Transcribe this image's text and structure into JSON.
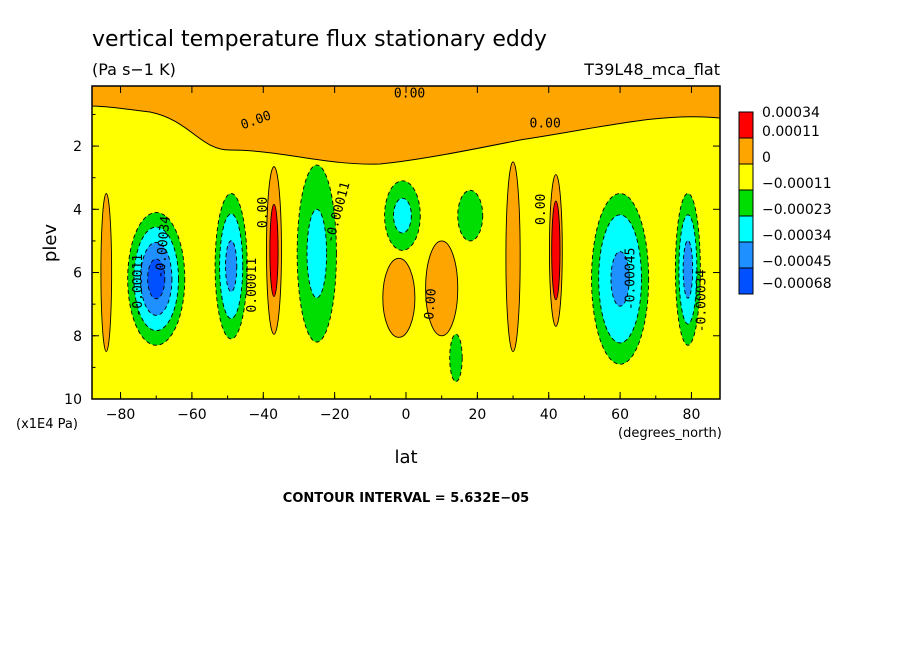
{
  "chart_data": {
    "type": "heatmap",
    "title": "vertical temperature flux stationary eddy",
    "units": "(Pa s−1 K)",
    "dataset": "T39L48_mca_flat",
    "xlabel": "lat",
    "x_units": "(degrees_north)",
    "ylabel": "plev",
    "y_units": "(x1E4 Pa)",
    "xlim": [
      -88,
      88
    ],
    "ylim": [
      10,
      0.1
    ],
    "x_ticks": [
      -80,
      -60,
      -40,
      -20,
      0,
      20,
      40,
      60,
      80
    ],
    "x_tick_labels": [
      "−80",
      "−60",
      "−40",
      "−20",
      "0",
      "20",
      "40",
      "60",
      "80"
    ],
    "y_ticks": [
      2,
      4,
      6,
      8,
      10
    ],
    "y_tick_labels": [
      "2",
      "4",
      "6",
      "8",
      "10"
    ],
    "contour_interval_text": "CONTOUR INTERVAL = 5.632E−05",
    "colorbar": {
      "levels": [
        "0.00034",
        "0.00011",
        "0",
        "−0.00011",
        "−0.00023",
        "−0.00034",
        "−0.00045",
        "−0.00068"
      ],
      "colors": [
        "#ff0000",
        "#ffa500",
        "#ffff00",
        "#00dd00",
        "#00ffff",
        "#1e90ff",
        "#0050ff"
      ]
    },
    "background_color": "#ffff00",
    "regions": [
      {
        "lat": -70,
        "plev": 6.2,
        "w": 16,
        "h": 4.2,
        "bands": [
          [
            "#00dd00",
            1.0
          ],
          [
            "#00ffff",
            0.78
          ],
          [
            "#1e90ff",
            0.55
          ],
          [
            "#0050ff",
            0.3
          ]
        ]
      },
      {
        "lat": -49,
        "plev": 5.8,
        "w": 9,
        "h": 4.6,
        "bands": [
          [
            "#00dd00",
            1.0
          ],
          [
            "#00ffff",
            0.72
          ],
          [
            "#1e90ff",
            0.35
          ]
        ]
      },
      {
        "lat": -37,
        "plev": 5.3,
        "w": 4.2,
        "h": 5.3,
        "bands": [
          [
            "#ffa500",
            1.0
          ],
          [
            "#ff0000",
            0.55
          ]
        ]
      },
      {
        "lat": -25,
        "plev": 5.4,
        "w": 11,
        "h": 5.6,
        "bands": [
          [
            "#00dd00",
            1.0
          ],
          [
            "#00ffff",
            0.5
          ]
        ]
      },
      {
        "lat": -1,
        "plev": 4.2,
        "w": 10,
        "h": 2.2,
        "bands": [
          [
            "#00dd00",
            1.0
          ],
          [
            "#00ffff",
            0.5
          ]
        ]
      },
      {
        "lat": 18,
        "plev": 4.2,
        "w": 7,
        "h": 1.6,
        "bands": [
          [
            "#00dd00",
            1.0
          ]
        ]
      },
      {
        "lat": 14,
        "plev": 8.7,
        "w": 3.5,
        "h": 1.5,
        "bands": [
          [
            "#00dd00",
            1.0
          ]
        ]
      },
      {
        "lat": 42,
        "plev": 5.3,
        "w": 3.6,
        "h": 4.8,
        "bands": [
          [
            "#ffa500",
            1.0
          ],
          [
            "#ff0000",
            0.65
          ]
        ]
      },
      {
        "lat": 60,
        "plev": 6.2,
        "w": 16,
        "h": 5.4,
        "bands": [
          [
            "#00dd00",
            1.0
          ],
          [
            "#00ffff",
            0.75
          ],
          [
            "#1e90ff",
            0.32
          ]
        ]
      },
      {
        "lat": 79,
        "plev": 5.9,
        "w": 7,
        "h": 4.8,
        "bands": [
          [
            "#00dd00",
            1.0
          ],
          [
            "#00ffff",
            0.72
          ],
          [
            "#1e90ff",
            0.38
          ]
        ]
      },
      {
        "lat": 10,
        "plev": 6.5,
        "w": 9,
        "h": 3,
        "bands": [
          [
            "#ffa500",
            1.0
          ]
        ]
      },
      {
        "lat": -2,
        "plev": 6.8,
        "w": 9,
        "h": 2.5,
        "bands": [
          [
            "#ffa500",
            1.0
          ]
        ]
      },
      {
        "lat": 30,
        "plev": 5.5,
        "w": 4,
        "h": 6,
        "bands": [
          [
            "#ffa500",
            1.0
          ]
        ]
      },
      {
        "lat": -84,
        "plev": 6,
        "w": 3,
        "h": 5,
        "bands": [
          [
            "#ffa500",
            1.0
          ]
        ]
      }
    ],
    "contour_labels": [
      {
        "lat": 1,
        "plev": 0.35,
        "text": "0.00",
        "rot": 0
      },
      {
        "lat": -42,
        "plev": 1.2,
        "text": "0.00",
        "rot": -20
      },
      {
        "lat": 39,
        "plev": 1.3,
        "text": "0.00",
        "rot": 0
      },
      {
        "lat": -40,
        "plev": 4.1,
        "text": "0.00",
        "rot": -90
      },
      {
        "lat": -19,
        "plev": 4.1,
        "text": "-0.00011",
        "rot": -75
      },
      {
        "lat": -68,
        "plev": 5.2,
        "text": "-0.00034",
        "rot": -85
      },
      {
        "lat": -75,
        "plev": 6.4,
        "text": "-0.00011",
        "rot": -90
      },
      {
        "lat": -43,
        "plev": 6.4,
        "text": "0.00011",
        "rot": -90
      },
      {
        "lat": 38,
        "plev": 4.0,
        "text": "0.00",
        "rot": -90
      },
      {
        "lat": 7,
        "plev": 7.0,
        "text": "0.00",
        "rot": -85
      },
      {
        "lat": 63,
        "plev": 6.2,
        "text": "-0.00045",
        "rot": -90
      },
      {
        "lat": 83,
        "plev": 6.9,
        "text": "-0.00034",
        "rot": -90
      }
    ]
  }
}
